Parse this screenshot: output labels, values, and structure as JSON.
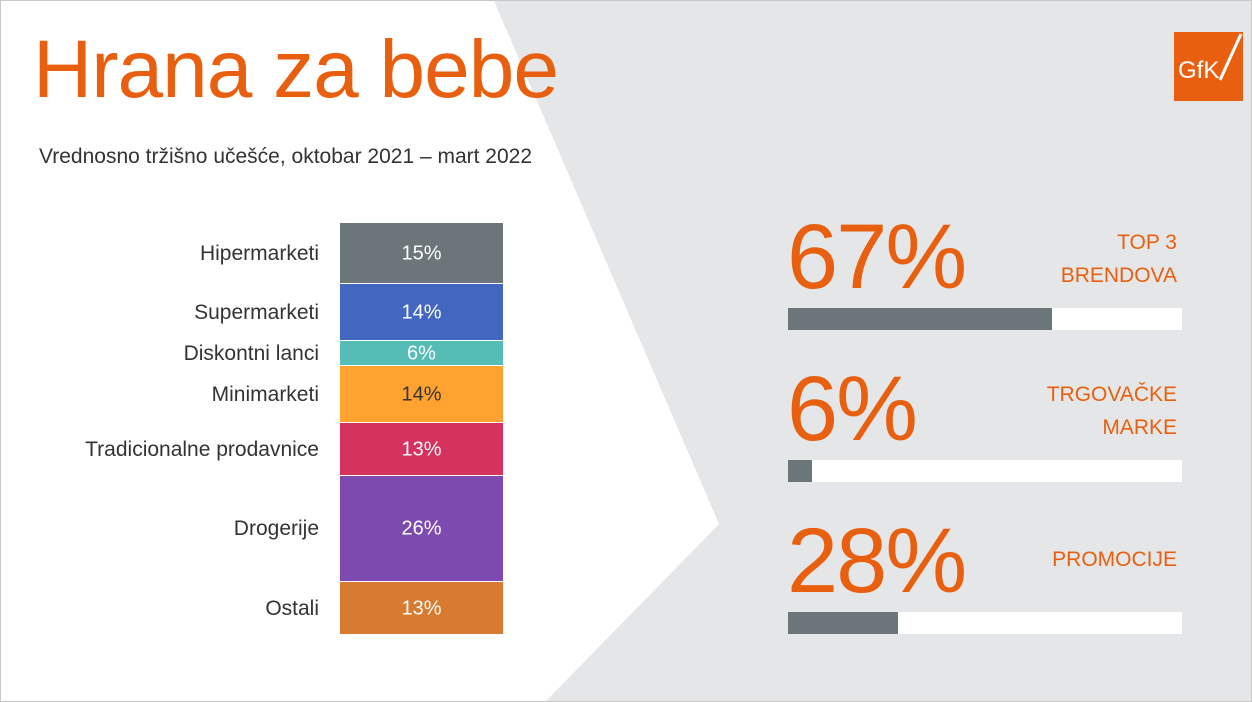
{
  "title": "Hrana za bebe",
  "subtitle": "Vrednosno tržišno učešće, oktobar 2021 – mart 2022",
  "logo_text": "GfK",
  "colors": {
    "accent": "#e8600f",
    "background_panel": "#e5e6e8",
    "kpi_bar": "#6c757a"
  },
  "chart_data": [
    {
      "type": "bar",
      "stacked": true,
      "orientation": "vertical",
      "title": "",
      "categories": [
        "Hipermarketi",
        "Supermarketi",
        "Diskontni lanci",
        "Minimarketi",
        "Tradicionalne prodavnice",
        "Drogerije",
        "Ostali"
      ],
      "values": [
        15,
        14,
        6,
        14,
        13,
        26,
        13
      ],
      "value_labels": [
        "15%",
        "14%",
        "6%",
        "14%",
        "13%",
        "26%",
        "13%"
      ],
      "colors": [
        "#6c757a",
        "#4267c0",
        "#55bcb6",
        "#ffa22f",
        "#d5325d",
        "#7d4baf",
        "#d87a30"
      ],
      "label_colors": [
        "#ffffff",
        "#ffffff",
        "#ffffff",
        "#333333",
        "#ffffff",
        "#ffffff",
        "#ffffff"
      ],
      "unit": "%"
    },
    {
      "type": "bar",
      "orientation": "horizontal",
      "categories": [
        "TOP 3 BRENDOVA",
        "TRGOVAČKE MARKE",
        "PROMOCIJE"
      ],
      "values": [
        67,
        6,
        28
      ],
      "ylim": [
        0,
        100
      ]
    }
  ],
  "kpis": [
    {
      "value_text": "67%",
      "value": 67,
      "label_lines": [
        "TOP 3",
        "BRENDOVA"
      ]
    },
    {
      "value_text": "6%",
      "value": 6,
      "label_lines": [
        "TRGOVAČKE",
        "MARKE"
      ]
    },
    {
      "value_text": "28%",
      "value": 28,
      "label_lines": [
        "PROMOCIJE"
      ]
    }
  ]
}
